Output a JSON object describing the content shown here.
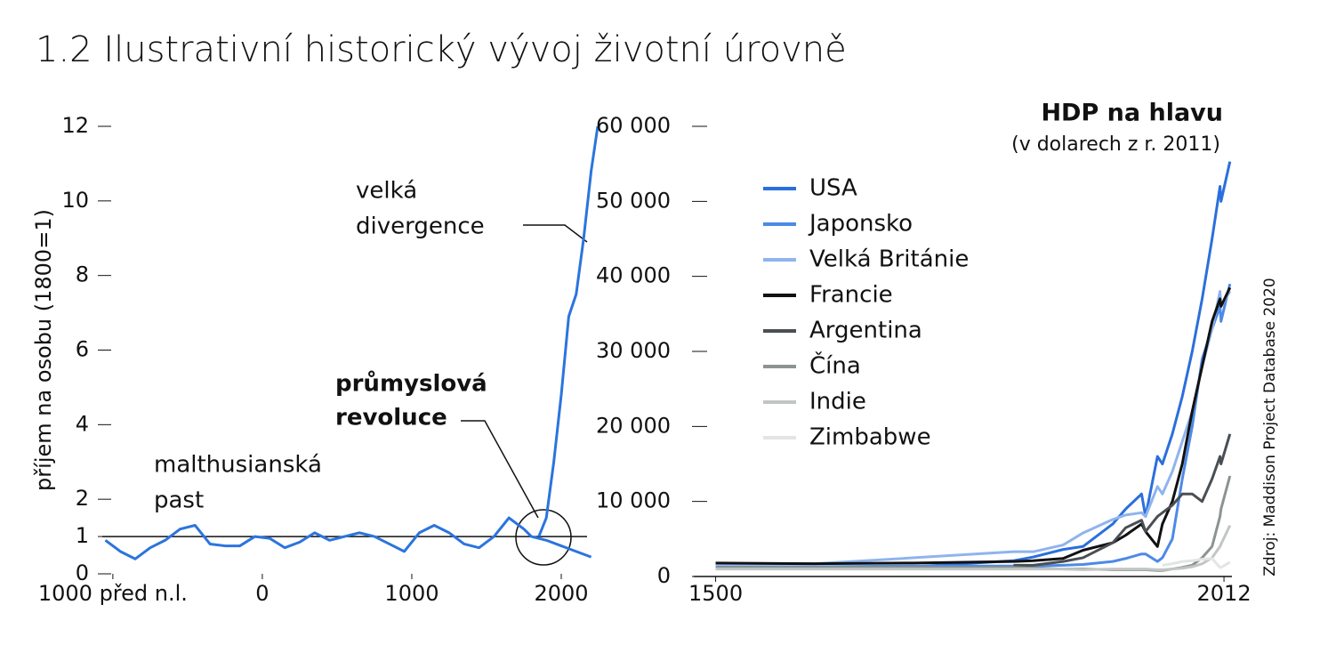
{
  "title": "1.2 Ilustrativní historický vývoj životní úrovně",
  "source": "Zdroj: Maddison Project Database 2020",
  "chart_data": [
    {
      "type": "line",
      "ylabel": "příjem na osobu (1800=1)",
      "xlim": [
        -1160,
        2244
      ],
      "ylim": [
        0,
        12
      ],
      "xticks": [
        {
          "value": -1000,
          "label": "1000 před n.l."
        },
        0,
        1000,
        2000
      ],
      "yticks": [
        0,
        1,
        2,
        4,
        6,
        8,
        10,
        12
      ],
      "hline": 1,
      "series": [
        {
          "color": "#2b74de",
          "x": [
            -1050,
            -950,
            -850,
            -750,
            -650,
            -550,
            -450,
            -350,
            -250,
            -150,
            -50,
            50,
            150,
            250,
            350,
            450,
            550,
            650,
            750,
            850,
            950,
            1050,
            1150,
            1250,
            1350,
            1450,
            1550,
            1650,
            1750,
            1800,
            1850,
            1900,
            2000,
            2100,
            2200
          ],
          "values": [
            0.9,
            0.6,
            0.4,
            0.7,
            0.9,
            1.2,
            1.3,
            0.8,
            0.75,
            0.75,
            1.0,
            0.95,
            0.7,
            0.85,
            1.1,
            0.9,
            1.0,
            1.1,
            1.0,
            0.8,
            0.6,
            1.1,
            1.3,
            1.1,
            0.8,
            0.7,
            1.0,
            1.5,
            1.2,
            1.0,
            0.95,
            0.9,
            0.75,
            0.6,
            0.45
          ]
        },
        {
          "color": "#2b74de",
          "x": [
            1850,
            1900,
            1950,
            2000,
            2050,
            2100,
            2150,
            2200,
            2244
          ],
          "values": [
            1.0,
            1.5,
            3.0,
            4.8,
            6.9,
            7.5,
            9.0,
            10.8,
            12
          ]
        }
      ],
      "annotations": [
        {
          "lines": [
            "velká",
            "divergence"
          ]
        },
        {
          "lines": [
            "průmyslová",
            "revoluce"
          ]
        },
        {
          "lines": [
            "malthusianská",
            "past"
          ]
        }
      ]
    },
    {
      "type": "line",
      "title": "HDP na hlavu",
      "subtitle": "(v dolarech z r. 2011)",
      "xlim": [
        1478,
        2020
      ],
      "ylim": [
        0,
        60000
      ],
      "xticks": [
        1500,
        2012
      ],
      "yticks": [
        0,
        {
          "value": 10000,
          "label": "10 000"
        },
        {
          "value": 20000,
          "label": "20 000"
        },
        {
          "value": 30000,
          "label": "30 000"
        },
        {
          "value": 40000,
          "label": "40 000"
        },
        {
          "value": 50000,
          "label": "50 000"
        },
        {
          "value": 60000,
          "label": "60 000"
        }
      ],
      "legend": "top-left",
      "x": [
        1500,
        1600,
        1700,
        1800,
        1820,
        1850,
        1870,
        1900,
        1913,
        1929,
        1933,
        1945,
        1950,
        1960,
        1970,
        1980,
        1990,
        2000,
        2008,
        2009,
        2018
      ],
      "series": [
        {
          "name": "USA",
          "color": "#2b6fdc",
          "values": [
            null,
            null,
            1300,
            2100,
            2600,
            3600,
            4000,
            7000,
            9000,
            11000,
            8000,
            16000,
            15000,
            19000,
            24000,
            30000,
            37000,
            45000,
            52000,
            50000,
            55300
          ]
        },
        {
          "name": "Japonsko",
          "color": "#4d8ae6",
          "values": [
            1300,
            1300,
            1400,
            1400,
            1400,
            1500,
            1600,
            2000,
            2400,
            3000,
            3000,
            2000,
            2500,
            5000,
            13000,
            20000,
            29000,
            33000,
            36000,
            34000,
            39000
          ]
        },
        {
          "name": "Velká Británie",
          "color": "#8fb4ee",
          "values": [
            1700,
            1700,
            2500,
            3300,
            3300,
            4200,
            5800,
            7600,
            8200,
            8500,
            8000,
            12000,
            11000,
            14000,
            18000,
            22000,
            28000,
            33000,
            38000,
            36000,
            38000
          ]
        },
        {
          "name": "Francie",
          "color": "#111111",
          "values": [
            1800,
            1700,
            1800,
            2000,
            2100,
            2400,
            3500,
            4500,
            5500,
            7000,
            6000,
            4000,
            7000,
            10000,
            15000,
            22000,
            28000,
            34000,
            37000,
            36000,
            38500
          ]
        },
        {
          "name": "Argentina",
          "color": "#4a4f55",
          "values": [
            null,
            null,
            null,
            1500,
            1500,
            2000,
            2500,
            4500,
            6500,
            7500,
            6000,
            8000,
            8500,
            9500,
            11000,
            11000,
            10000,
            13000,
            16000,
            15000,
            19000
          ]
        },
        {
          "name": "Čína",
          "color": "#8c9490",
          "values": [
            1200,
            1200,
            1200,
            1200,
            1100,
            1000,
            1000,
            900,
            900,
            900,
            900,
            800,
            800,
            1000,
            1200,
            1500,
            2500,
            4000,
            8000,
            9000,
            13400
          ]
        },
        {
          "name": "Indie",
          "color": "#c1c6c2",
          "values": [
            1000,
            1000,
            1000,
            1000,
            1000,
            1000,
            900,
            1000,
            1000,
            1000,
            1000,
            900,
            900,
            1000,
            1100,
            1300,
            1700,
            2500,
            4000,
            4300,
            6800
          ]
        },
        {
          "name": "Zimbabwe",
          "color": "#e3e5e3",
          "values": [
            null,
            null,
            null,
            null,
            null,
            null,
            null,
            null,
            null,
            null,
            null,
            null,
            1500,
            1700,
            2000,
            2100,
            2300,
            2400,
            1200,
            1200,
            1900
          ]
        }
      ]
    }
  ]
}
